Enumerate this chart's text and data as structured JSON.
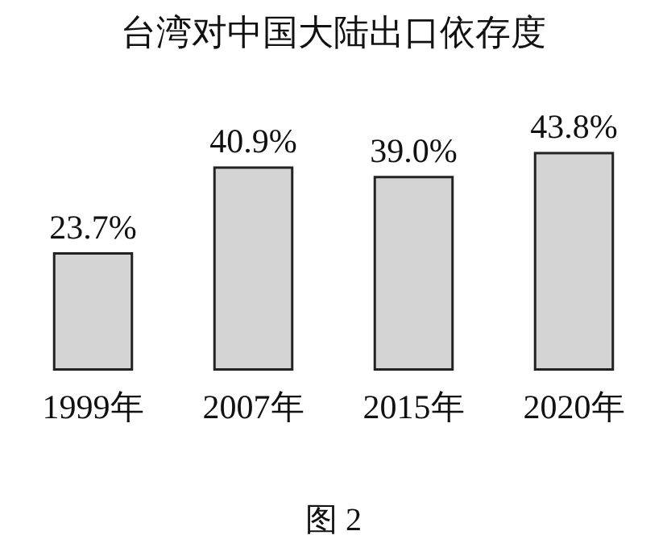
{
  "chart_data": {
    "type": "bar",
    "title": "台湾对中国大陆出口依存度",
    "categories": [
      "1999年",
      "2007年",
      "2015年",
      "2020年"
    ],
    "values": [
      23.7,
      40.9,
      39.0,
      43.8
    ],
    "value_labels": [
      "23.7%",
      "40.9%",
      "39.0%",
      "43.8%"
    ],
    "color": "#d4d4d4",
    "annotations": [
      "图 2"
    ]
  }
}
